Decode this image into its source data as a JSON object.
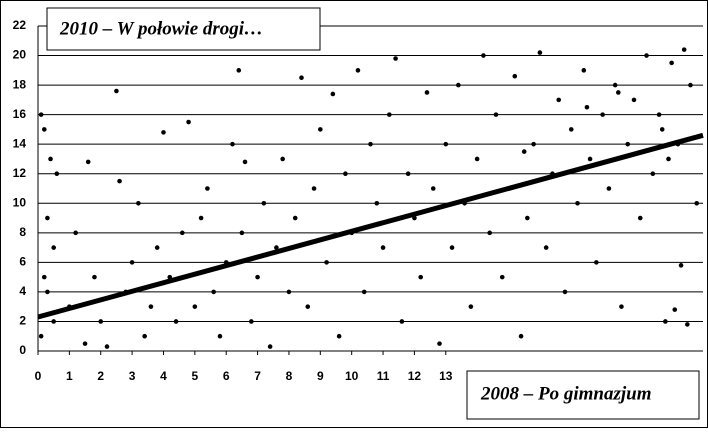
{
  "chart_data": {
    "type": "scatter",
    "ylabel": "2010 – W połowie drogi…",
    "xlabel": "2008 – Po gimnazjum",
    "color": "#000000",
    "grid": true,
    "xlim": [
      0,
      21.2
    ],
    "ylim": [
      0,
      22
    ],
    "xticks": [
      0,
      1,
      2,
      3,
      4,
      5,
      6,
      7,
      8,
      9,
      10,
      11,
      12,
      13
    ],
    "yticks": [
      0,
      2,
      4,
      6,
      8,
      10,
      12,
      14,
      16,
      18,
      20,
      22
    ],
    "x": [
      0.1,
      0.2,
      0.3,
      0.4,
      0.5,
      0.2,
      0.3,
      0.6,
      0.1,
      0.5,
      1,
      1.2,
      1.5,
      1.6,
      1.8,
      2,
      2.2,
      2.5,
      2.6,
      2.8,
      3,
      3.2,
      3.4,
      3.6,
      3.8,
      4,
      4.2,
      4.4,
      4.6,
      4.8,
      5,
      5.2,
      5.4,
      5.6,
      5.8,
      6,
      6.2,
      6.4,
      6.5,
      6.6,
      6.8,
      7,
      7.2,
      7.4,
      7.6,
      7.8,
      8,
      8.2,
      8.4,
      8.6,
      8.8,
      9,
      9.2,
      9.4,
      9.6,
      9.8,
      10,
      10.2,
      10.4,
      10.6,
      10.8,
      11,
      11.2,
      11.4,
      11.6,
      11.8,
      12,
      12.2,
      12.4,
      12.6,
      12.8,
      13,
      13.2,
      13.4,
      13.6,
      13.8,
      14,
      14.2,
      14.4,
      14.6,
      14.8,
      15,
      15.2,
      15.4,
      15.6,
      15.8,
      16,
      16.2,
      16.4,
      16.6,
      16.8,
      17,
      17.2,
      17.4,
      17.6,
      17.8,
      18,
      18.2,
      18.4,
      18.6,
      18.8,
      19,
      19.2,
      19.4,
      19.6,
      19.8,
      20,
      20.2,
      20.4,
      20.6,
      20.8,
      21,
      20.5,
      20.3,
      20.7,
      19.9,
      20.1,
      17.5,
      18.5,
      15.5
    ],
    "y": [
      16,
      15,
      9,
      13,
      7,
      5,
      4,
      12,
      1,
      2,
      3,
      8,
      0.5,
      12.8,
      5,
      2,
      0.3,
      17.6,
      11.5,
      4,
      6,
      10,
      1,
      3,
      7,
      14.8,
      5,
      2,
      8,
      15.5,
      3,
      9,
      11,
      4,
      1,
      6,
      14,
      19,
      8,
      12.8,
      2,
      5,
      10,
      0.3,
      7,
      13,
      4,
      9,
      18.5,
      3,
      11,
      15,
      6,
      17.4,
      1,
      12,
      8,
      19,
      4,
      14,
      10,
      7,
      16,
      19.8,
      2,
      12,
      9,
      5,
      17.5,
      11,
      0.5,
      14,
      7,
      18,
      10,
      3,
      13,
      20,
      8,
      16,
      5,
      11,
      18.6,
      1,
      9,
      14,
      20.2,
      7,
      12,
      17,
      4,
      15,
      10,
      19,
      13,
      6,
      16,
      11,
      18,
      3,
      14,
      17,
      9,
      20,
      12,
      16,
      2,
      19.5,
      14,
      20.4,
      18,
      10,
      5.8,
      2.8,
      1.8,
      15,
      13,
      16.5,
      17.5,
      13.5
    ],
    "trend_line": {
      "x": [
        0,
        21.2
      ],
      "y": [
        2.3,
        14.6
      ],
      "color": "#000000"
    }
  }
}
